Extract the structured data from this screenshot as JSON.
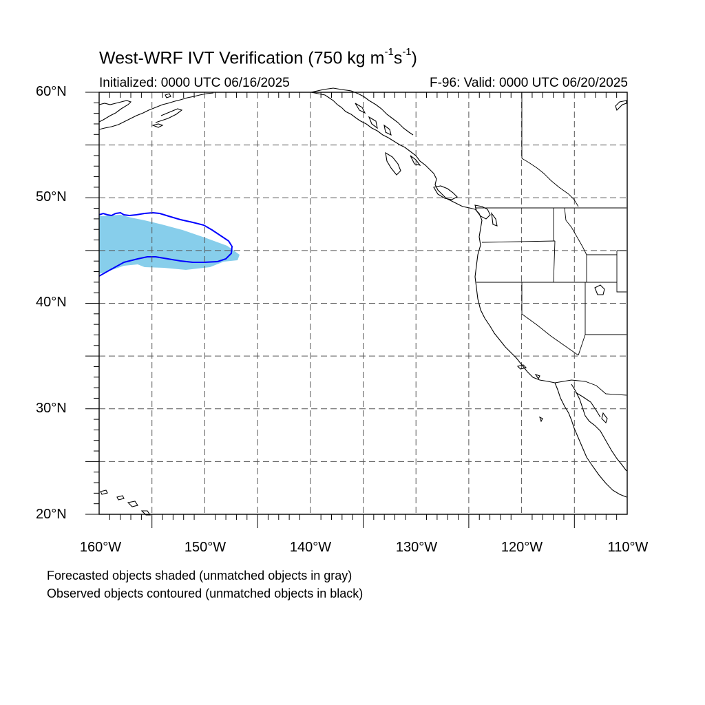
{
  "title": {
    "prefix": "West-WRF IVT Verification (750 kg m",
    "exp1": "-1",
    "middle": "s",
    "exp2": "-1",
    "suffix": ")"
  },
  "initialized": "Initialized: 0000 UTC 06/16/2025",
  "valid": "F-96: Valid: 0000 UTC 06/20/2025",
  "legend": {
    "line1": "Forecasted objects shaded (unmatched objects in gray)",
    "line2": "Observed objects contoured (unmatched objects in black)"
  },
  "map": {
    "lon_range": [
      -160,
      -110
    ],
    "lat_range": [
      20,
      60
    ],
    "lat_labels": [
      "60°N",
      "50°N",
      "40°N",
      "30°N",
      "20°N"
    ],
    "lon_labels": [
      "160°W",
      "150°W",
      "140°W",
      "130°W",
      "120°W",
      "110°W"
    ],
    "colors": {
      "forecast_fill": "#87ceeb",
      "observed_contour": "#0000ff",
      "coastline": "#000000",
      "grid": "#555555"
    }
  }
}
